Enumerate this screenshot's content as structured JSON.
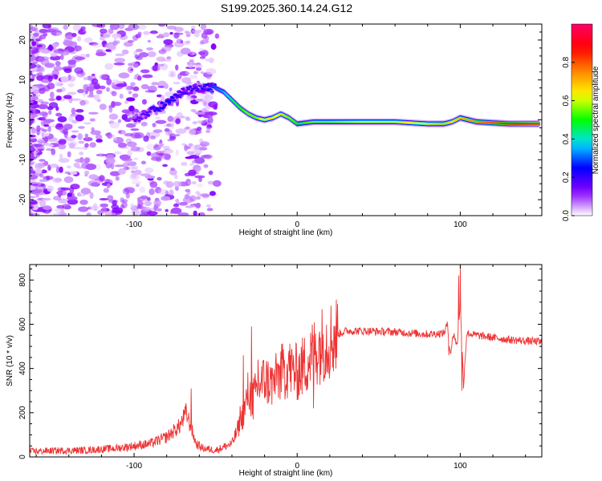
{
  "title": "S199.2025.360.14.24.G12",
  "chart_data": [
    {
      "type": "heatmap",
      "xlabel": "Height of straight line (km)",
      "ylabel": "Frequency (Hz)",
      "xlim": [
        -164,
        150
      ],
      "ylim": [
        -24,
        24
      ],
      "x_ticks": [
        "-100",
        "0",
        "100"
      ],
      "x_tick_values": [
        -100,
        0,
        100
      ],
      "y_ticks": [
        "-20",
        "-10",
        "0",
        "10",
        "20"
      ],
      "y_tick_values": [
        -20,
        -10,
        0,
        10,
        20
      ],
      "colorbar": {
        "label": "Normalized spectral amplitude",
        "range": [
          0,
          1
        ],
        "ticks": [
          "0.0",
          "0.2",
          "0.4",
          "0.6",
          "0.8"
        ],
        "tick_values": [
          0,
          0.2,
          0.4,
          0.6,
          0.8
        ],
        "colormap": [
          "#ffffff",
          "#8800ff",
          "#0000ff",
          "#00ddff",
          "#00ff00",
          "#ffff00",
          "#ff8800",
          "#ff0000",
          "#ff0066"
        ]
      },
      "ridge": {
        "x": [
          -100,
          -90,
          -80,
          -70,
          -60,
          -50,
          -45,
          -40,
          -35,
          -30,
          -25,
          -20,
          -15,
          -10,
          -5,
          0,
          10,
          20,
          40,
          60,
          80,
          90,
          95,
          100,
          110,
          130,
          148
        ],
        "y": [
          0,
          2,
          4,
          7,
          8,
          8,
          7,
          5,
          3,
          1.5,
          0.5,
          0,
          0.5,
          1.5,
          0.5,
          -1,
          -0.5,
          -0.5,
          -0.5,
          -0.5,
          -1,
          -1,
          -0.5,
          0.5,
          -0.5,
          -1,
          -1
        ],
        "amplitude": [
          0.15,
          0.2,
          0.25,
          0.2,
          0.2,
          0.3,
          0.35,
          0.45,
          0.5,
          0.55,
          0.55,
          0.65,
          0.65,
          0.6,
          0.55,
          0.5,
          0.55,
          0.55,
          0.6,
          0.6,
          0.65,
          0.7,
          0.65,
          0.7,
          0.75,
          0.85,
          0.95
        ]
      }
    },
    {
      "type": "line",
      "xlabel": "Height of straight line (km)",
      "ylabel": "SNR (10 * v/v)",
      "xlim": [
        -164,
        150
      ],
      "ylim": [
        0,
        870
      ],
      "x_ticks": [
        "-100",
        "0",
        "100"
      ],
      "x_tick_values": [
        -100,
        0,
        100
      ],
      "y_ticks": [
        "0",
        "200",
        "400",
        "600",
        "800"
      ],
      "y_tick_values": [
        0,
        200,
        400,
        600,
        800
      ],
      "color": "#ee3333",
      "series": [
        {
          "x": [
            -164,
            -150,
            -130,
            -110,
            -90,
            -80,
            -72,
            -68,
            -65,
            -62,
            -58,
            -50,
            -40,
            -35,
            -32,
            -30,
            -28,
            -26,
            -24,
            -20,
            -15,
            -10,
            -5,
            0,
            5,
            10,
            15,
            20,
            25,
            30,
            40,
            60,
            80,
            90,
            92,
            94,
            96,
            98,
            100,
            102,
            104,
            110,
            120,
            130,
            150
          ],
          "y": [
            25,
            28,
            30,
            40,
            60,
            90,
            140,
            200,
            130,
            60,
            40,
            30,
            60,
            150,
            220,
            300,
            260,
            280,
            320,
            350,
            330,
            380,
            400,
            380,
            420,
            470,
            510,
            530,
            555,
            570,
            570,
            565,
            555,
            560,
            600,
            470,
            560,
            500,
            700,
            330,
            560,
            550,
            540,
            530,
            520
          ]
        }
      ],
      "spikes": {
        "x": [
          -164,
          -65,
          -35,
          -33,
          -30,
          -28,
          -27,
          -24,
          -18,
          -12,
          -8,
          -5,
          10,
          93,
          99,
          100,
          101,
          102
        ],
        "y": [
          60,
          310,
          230,
          460,
          260,
          590,
          170,
          440,
          380,
          420,
          400,
          480,
          220,
          460,
          820,
          860,
          300,
          310
        ]
      }
    }
  ]
}
